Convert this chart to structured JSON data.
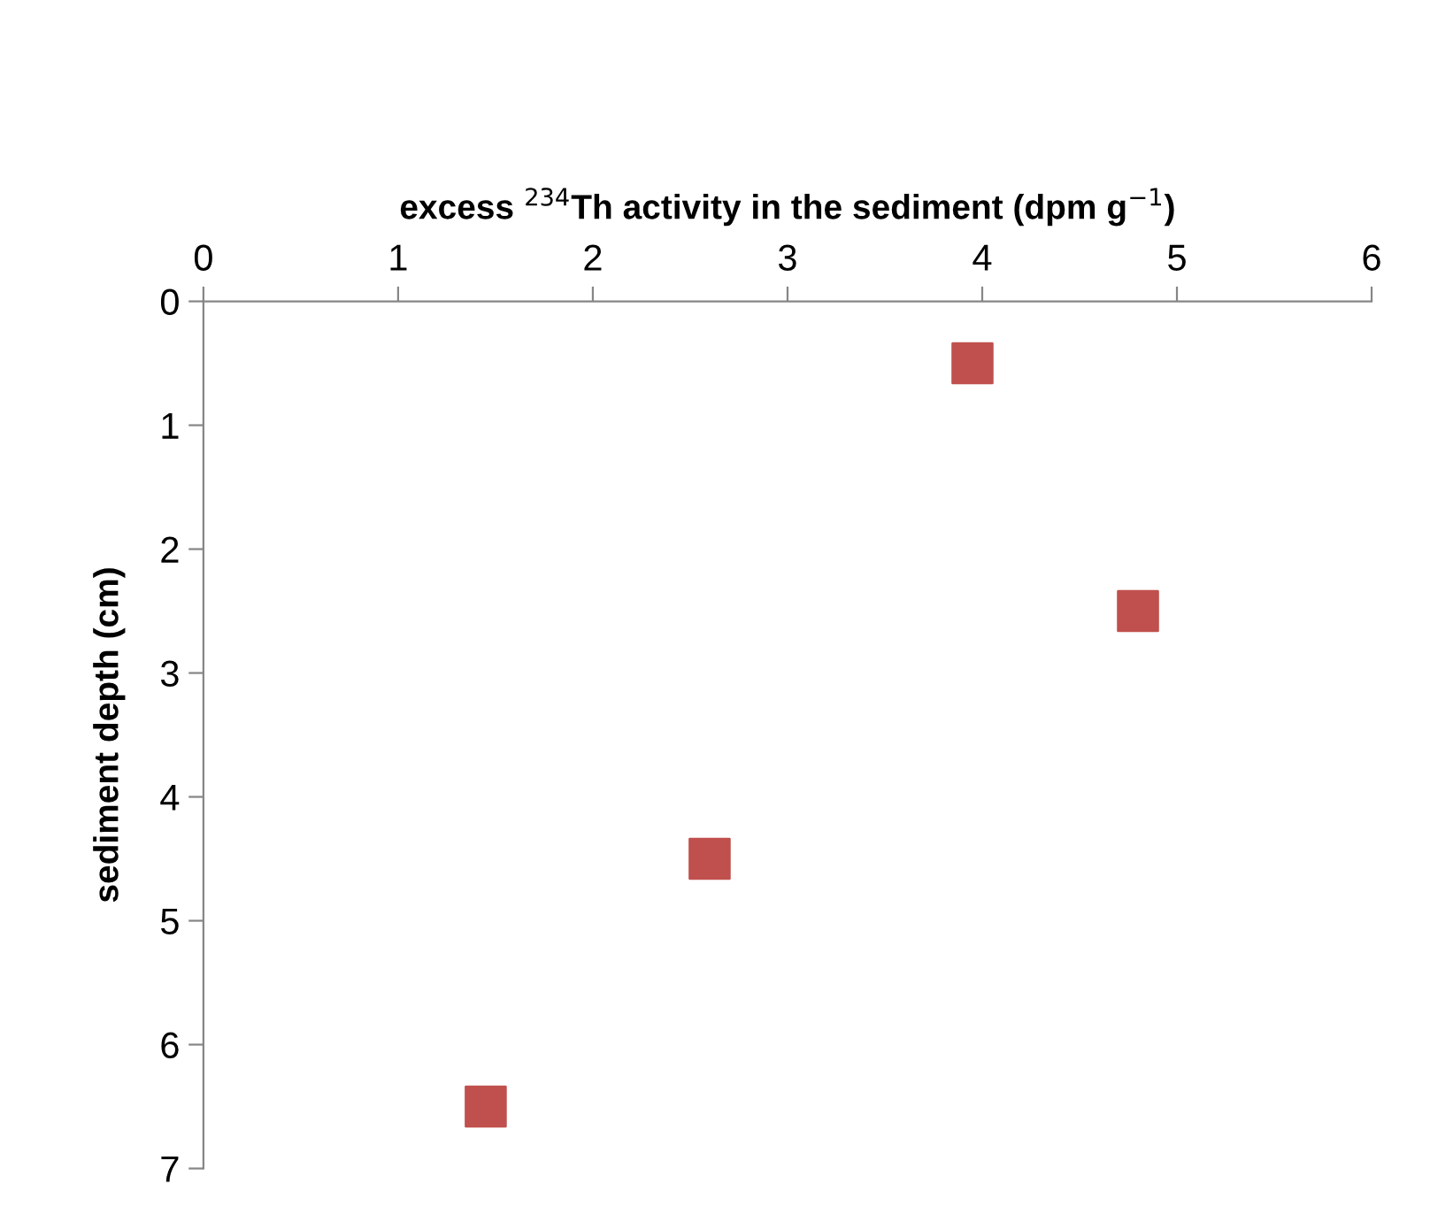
{
  "chart_data": {
    "type": "scatter",
    "xlabel": "excess $^{234}$Th activity in the sediment (dpm g$^{−1}$)",
    "ylabel": "sediment depth (cm)",
    "x": [
      3.95,
      4.8,
      2.6,
      1.45
    ],
    "series": [
      {
        "color": "#c0504d",
        "values": [
          0.5,
          2.5,
          4.5,
          6.5
        ]
      }
    ],
    "xlim": [
      0,
      6
    ],
    "xticks": [
      0,
      1,
      2,
      3,
      4,
      5,
      6
    ],
    "ylim": [
      7,
      0
    ],
    "yticks": [
      0,
      1,
      2,
      3,
      4,
      5,
      6,
      7
    ],
    "grid": false,
    "legend": false,
    "marker": "square"
  }
}
